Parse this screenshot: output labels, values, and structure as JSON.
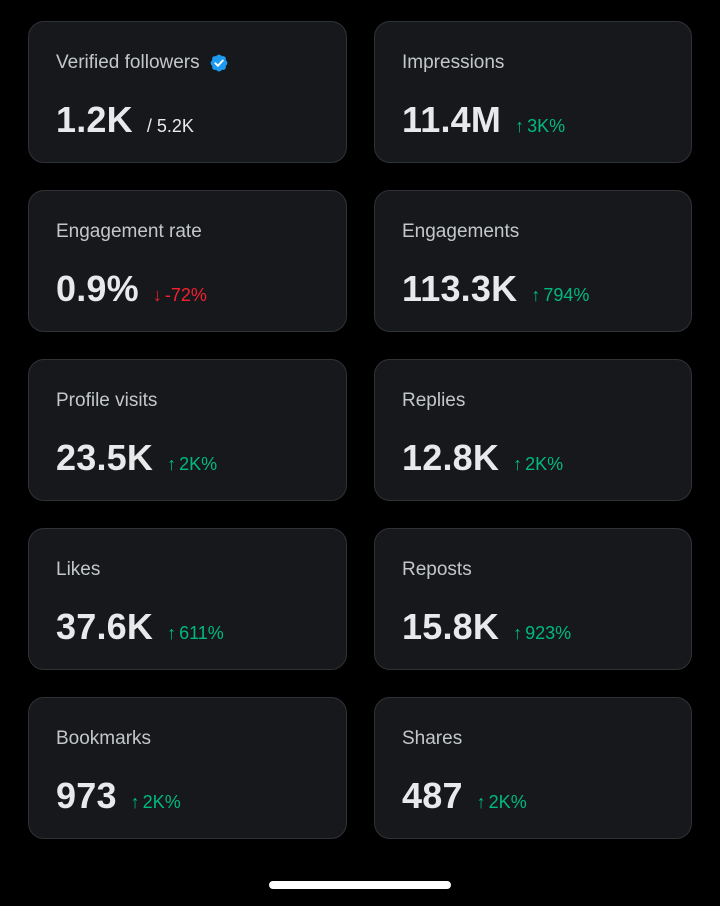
{
  "colors": {
    "background": "#000000",
    "card": "#16181c",
    "card_border": "#2f3336",
    "positive": "#00ba7c",
    "negative": "#f4212e",
    "verified": "#1d9bf0"
  },
  "metrics": [
    {
      "title": "Verified followers",
      "value": "1.2K",
      "sub": "/ 5.2K",
      "verified_icon": "verified-badge-icon"
    },
    {
      "title": "Impressions",
      "value": "11.4M",
      "change": "3K%",
      "direction": "up",
      "arrow": "↑"
    },
    {
      "title": "Engagement rate",
      "value": "0.9%",
      "change": "-72%",
      "direction": "down",
      "arrow": "↓"
    },
    {
      "title": "Engagements",
      "value": "113.3K",
      "change": "794%",
      "direction": "up",
      "arrow": "↑"
    },
    {
      "title": "Profile visits",
      "value": "23.5K",
      "change": "2K%",
      "direction": "up",
      "arrow": "↑"
    },
    {
      "title": "Replies",
      "value": "12.8K",
      "change": "2K%",
      "direction": "up",
      "arrow": "↑"
    },
    {
      "title": "Likes",
      "value": "37.6K",
      "change": "611%",
      "direction": "up",
      "arrow": "↑"
    },
    {
      "title": "Reposts",
      "value": "15.8K",
      "change": "923%",
      "direction": "up",
      "arrow": "↑"
    },
    {
      "title": "Bookmarks",
      "value": "973",
      "change": "2K%",
      "direction": "up",
      "arrow": "↑"
    },
    {
      "title": "Shares",
      "value": "487",
      "change": "2K%",
      "direction": "up",
      "arrow": "↑"
    }
  ]
}
